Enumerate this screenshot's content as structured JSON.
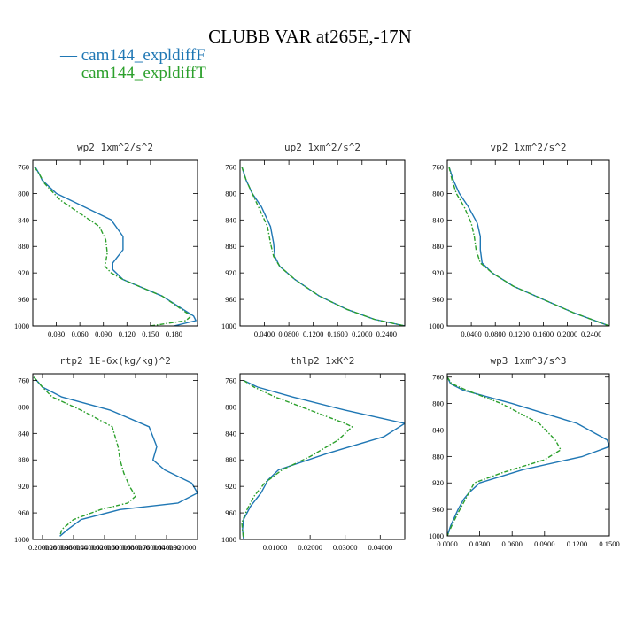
{
  "title": "CLUBB VAR at265E,-17N",
  "legend": [
    {
      "label": "— cam144_expldiffF",
      "color": "#1f77b4"
    },
    {
      "label": "— cam144_expldiffT",
      "color": "#2ca02c"
    }
  ],
  "chart_data": [
    {
      "type": "line",
      "title": "wp2  1xm^2/s^2",
      "xlim": [
        0.0,
        0.21
      ],
      "ylim": [
        1000,
        750
      ],
      "xticks": [
        0.03,
        0.06,
        0.09,
        0.12,
        0.15,
        0.18
      ],
      "xticklabels": [
        "0.030",
        "0.060",
        "0.090",
        "0.120",
        "0.150",
        "0.180"
      ],
      "yticks": [
        760,
        800,
        840,
        880,
        920,
        960,
        1000
      ],
      "series": [
        {
          "name": "cam144_expldiffF",
          "x": [
            0.003,
            0.008,
            0.012,
            0.03,
            0.1,
            0.115,
            0.115,
            0.102,
            0.102,
            0.115,
            0.165,
            0.205,
            0.208,
            0.18
          ],
          "y": [
            760,
            770,
            780,
            800,
            840,
            865,
            885,
            905,
            915,
            930,
            955,
            985,
            992,
            1000
          ]
        },
        {
          "name": "cam144_expldiffT",
          "x": [
            0.002,
            0.008,
            0.015,
            0.035,
            0.085,
            0.093,
            0.095,
            0.092,
            0.1,
            0.115,
            0.165,
            0.202,
            0.195,
            0.15
          ],
          "y": [
            760,
            770,
            785,
            810,
            850,
            870,
            890,
            910,
            920,
            930,
            955,
            985,
            992,
            1000
          ]
        }
      ]
    },
    {
      "type": "line",
      "title": "up2  1xm^2/s^2",
      "xlim": [
        0.0,
        0.27
      ],
      "ylim": [
        1000,
        750
      ],
      "xticks": [
        0.04,
        0.08,
        0.12,
        0.16,
        0.2,
        0.24
      ],
      "xticklabels": [
        "0.0400",
        "0.0800",
        "0.1200",
        "0.1600",
        "0.2000",
        "0.2400"
      ],
      "yticks": [
        760,
        800,
        840,
        880,
        920,
        960,
        1000
      ],
      "series": [
        {
          "name": "cam144_expldiffF",
          "x": [
            0.003,
            0.01,
            0.02,
            0.035,
            0.05,
            0.055,
            0.057,
            0.065,
            0.09,
            0.13,
            0.175,
            0.22,
            0.26,
            0.27
          ],
          "y": [
            760,
            780,
            800,
            820,
            850,
            875,
            895,
            910,
            930,
            955,
            975,
            990,
            998,
            1000
          ]
        },
        {
          "name": "cam144_expldiffT",
          "x": [
            0.003,
            0.01,
            0.02,
            0.03,
            0.045,
            0.05,
            0.055,
            0.065,
            0.09,
            0.13,
            0.175,
            0.22,
            0.26,
            0.27
          ],
          "y": [
            760,
            780,
            800,
            820,
            850,
            875,
            895,
            910,
            930,
            955,
            975,
            990,
            998,
            1000
          ]
        }
      ]
    },
    {
      "type": "line",
      "title": "vp2  1xm^2/s^2",
      "xlim": [
        0.0,
        0.27
      ],
      "ylim": [
        1000,
        750
      ],
      "xticks": [
        0.04,
        0.08,
        0.12,
        0.16,
        0.2,
        0.24
      ],
      "xticklabels": [
        "0.0400",
        "0.0800",
        "0.1200",
        "0.1600",
        "0.2000",
        "0.2400"
      ],
      "yticks": [
        760,
        800,
        840,
        880,
        920,
        960,
        1000
      ],
      "series": [
        {
          "name": "cam144_expldiffF",
          "x": [
            0.003,
            0.01,
            0.02,
            0.035,
            0.05,
            0.055,
            0.055,
            0.058,
            0.075,
            0.11,
            0.16,
            0.21,
            0.255,
            0.27
          ],
          "y": [
            760,
            780,
            800,
            820,
            845,
            865,
            885,
            905,
            920,
            940,
            960,
            980,
            995,
            1000
          ]
        },
        {
          "name": "cam144_expldiffT",
          "x": [
            0.003,
            0.008,
            0.015,
            0.028,
            0.04,
            0.045,
            0.048,
            0.055,
            0.075,
            0.11,
            0.16,
            0.21,
            0.255,
            0.27
          ],
          "y": [
            760,
            780,
            800,
            820,
            845,
            865,
            885,
            905,
            920,
            940,
            960,
            980,
            995,
            1000
          ]
        }
      ]
    },
    {
      "type": "line",
      "title": "rtp2  1E-6x(kg/kg)^2",
      "xlim": [
        0.15,
        1.0
      ],
      "ylim": [
        1000,
        750
      ],
      "xticks": [
        0.2,
        0.28,
        0.36,
        0.44,
        0.52,
        0.6,
        0.68,
        0.76,
        0.84,
        0.92
      ],
      "xticklabels": [
        "0.200000",
        "0.280000",
        "0.360000",
        "0.440000",
        "0.520000",
        "0.600000",
        "0.680000",
        "0.760000",
        "0.840000",
        "0.920000"
      ],
      "yticks": [
        760,
        800,
        840,
        880,
        920,
        960,
        1000
      ],
      "series": [
        {
          "name": "cam144_expldiffF",
          "x": [
            0.155,
            0.2,
            0.3,
            0.55,
            0.75,
            0.79,
            0.77,
            0.83,
            0.97,
            1.0,
            0.9,
            0.6,
            0.4,
            0.33,
            0.29
          ],
          "y": [
            755,
            770,
            785,
            805,
            830,
            860,
            880,
            895,
            915,
            930,
            945,
            955,
            970,
            985,
            995
          ]
        },
        {
          "name": "cam144_expldiffT",
          "x": [
            0.155,
            0.2,
            0.25,
            0.4,
            0.56,
            0.59,
            0.6,
            0.62,
            0.65,
            0.68,
            0.64,
            0.5,
            0.36,
            0.3,
            0.29
          ],
          "y": [
            755,
            770,
            785,
            805,
            830,
            860,
            880,
            900,
            920,
            935,
            945,
            955,
            970,
            985,
            995
          ]
        }
      ]
    },
    {
      "type": "line",
      "title": "thlp2  1xK^2",
      "xlim": [
        0.0,
        0.047
      ],
      "ylim": [
        1000,
        750
      ],
      "xticks": [
        0.01,
        0.02,
        0.03,
        0.04
      ],
      "xticklabels": [
        "0.01000",
        "0.02000",
        "0.03000",
        "0.04000"
      ],
      "yticks": [
        760,
        800,
        840,
        880,
        920,
        960,
        1000
      ],
      "series": [
        {
          "name": "cam144_expldiffF",
          "x": [
            0.001,
            0.005,
            0.015,
            0.03,
            0.047,
            0.041,
            0.025,
            0.011,
            0.008,
            0.006,
            0.003,
            0.001,
            0.0007,
            0.001
          ],
          "y": [
            760,
            770,
            785,
            805,
            825,
            845,
            870,
            895,
            910,
            930,
            950,
            970,
            985,
            1000
          ]
        },
        {
          "name": "cam144_expldiffT",
          "x": [
            0.001,
            0.004,
            0.01,
            0.02,
            0.03,
            0.032,
            0.028,
            0.02,
            0.012,
            0.007,
            0.004,
            0.002,
            0.0005,
            0.001
          ],
          "y": [
            760,
            770,
            785,
            805,
            825,
            830,
            850,
            875,
            895,
            915,
            935,
            955,
            975,
            1000
          ]
        }
      ]
    },
    {
      "type": "line",
      "title": "wp3  1xm^3/s^3",
      "xlim": [
        0.0,
        0.15
      ],
      "ylim": [
        1000,
        755
      ],
      "xticks": [
        0.0,
        0.03,
        0.06,
        0.09,
        0.12,
        0.15
      ],
      "xticklabels": [
        "0.0000",
        "0.0300",
        "0.0600",
        "0.0900",
        "0.1200",
        "0.1500"
      ],
      "yticks": [
        760,
        800,
        840,
        880,
        920,
        960,
        1000
      ],
      "series": [
        {
          "name": "cam144_expldiffF",
          "x": [
            0.0,
            0.003,
            0.015,
            0.06,
            0.12,
            0.148,
            0.15,
            0.125,
            0.07,
            0.03,
            0.02,
            0.015,
            0.01,
            0.003,
            0.0
          ],
          "y": [
            760,
            770,
            780,
            800,
            830,
            855,
            865,
            880,
            900,
            920,
            935,
            945,
            960,
            985,
            1000
          ]
        },
        {
          "name": "cam144_expldiffT",
          "x": [
            0.0,
            0.004,
            0.018,
            0.05,
            0.085,
            0.1,
            0.105,
            0.09,
            0.05,
            0.025,
            0.02,
            0.015,
            0.01,
            0.004,
            0.0
          ],
          "y": [
            760,
            770,
            780,
            800,
            830,
            855,
            870,
            885,
            905,
            920,
            935,
            950,
            965,
            985,
            1000
          ]
        }
      ]
    }
  ]
}
